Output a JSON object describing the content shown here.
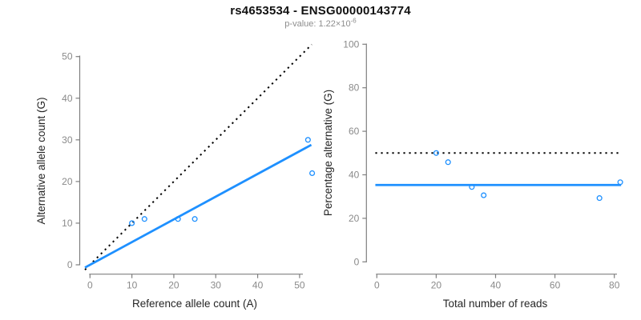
{
  "header": {
    "title": "rs4653534 - ENSG00000143774",
    "subtitle_prefix": "p-value: 1.22×10",
    "subtitle_exponent": "-6"
  },
  "colors": {
    "blue": "#1E90FF",
    "black": "#000000",
    "axis_line": "#7f7f7f",
    "tick_label": "#8a8a8a",
    "axis_title": "#262626"
  },
  "chart_data": [
    {
      "type": "scatter",
      "panel": "allele-counts",
      "xlabel": "Reference allele count (A)",
      "ylabel": "Alternative allele count (G)",
      "xticks": [
        0,
        10,
        20,
        30,
        40,
        50
      ],
      "yticks": [
        0,
        10,
        20,
        30,
        40,
        50
      ],
      "xlim": [
        -1.2,
        52.9
      ],
      "ylim": [
        -1.5,
        53
      ],
      "grid": false,
      "points": [
        [
          10,
          10
        ],
        [
          13,
          11
        ],
        [
          21,
          11
        ],
        [
          25,
          11
        ],
        [
          52,
          30
        ],
        [
          53,
          22
        ]
      ],
      "lines": [
        {
          "name": "identity-line",
          "style": "dotted",
          "color": "black",
          "x1": -1.2,
          "y1": -1.2,
          "x2": 52.9,
          "y2": 52.9
        },
        {
          "name": "fit-line",
          "style": "solid",
          "color": "blue",
          "x1": -1.2,
          "y1": -0.66,
          "x2": 52.8,
          "y2": 28.8
        }
      ]
    },
    {
      "type": "scatter",
      "panel": "percentage-alternative",
      "xlabel": "Total number of reads",
      "ylabel": "Percentage alternative (G)",
      "xticks": [
        0,
        20,
        40,
        60,
        80
      ],
      "yticks": [
        0,
        20,
        40,
        60,
        80,
        100
      ],
      "xlim": [
        -0.5,
        82.5
      ],
      "ylim": [
        -1,
        101
      ],
      "grid": false,
      "points": [
        [
          20,
          50
        ],
        [
          24,
          45.8
        ],
        [
          32,
          34.4
        ],
        [
          36,
          30.6
        ],
        [
          75,
          29.3
        ],
        [
          82,
          36.6
        ]
      ],
      "lines": [
        {
          "name": "expected-50pct-line",
          "style": "dotted",
          "color": "black",
          "x1": -0.5,
          "y1": 50,
          "x2": 81.5,
          "y2": 50
        },
        {
          "name": "mean-pct-line",
          "style": "solid",
          "color": "blue",
          "x1": -0.5,
          "y1": 35.3,
          "x2": 82.3,
          "y2": 35.3
        }
      ]
    }
  ]
}
